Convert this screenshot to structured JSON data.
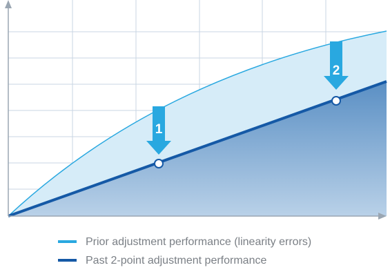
{
  "markers": [
    "1",
    "2"
  ],
  "legend": [
    "Prior adjustment performance (linearity errors)",
    "Past 2-point adjustment performance"
  ]
}
